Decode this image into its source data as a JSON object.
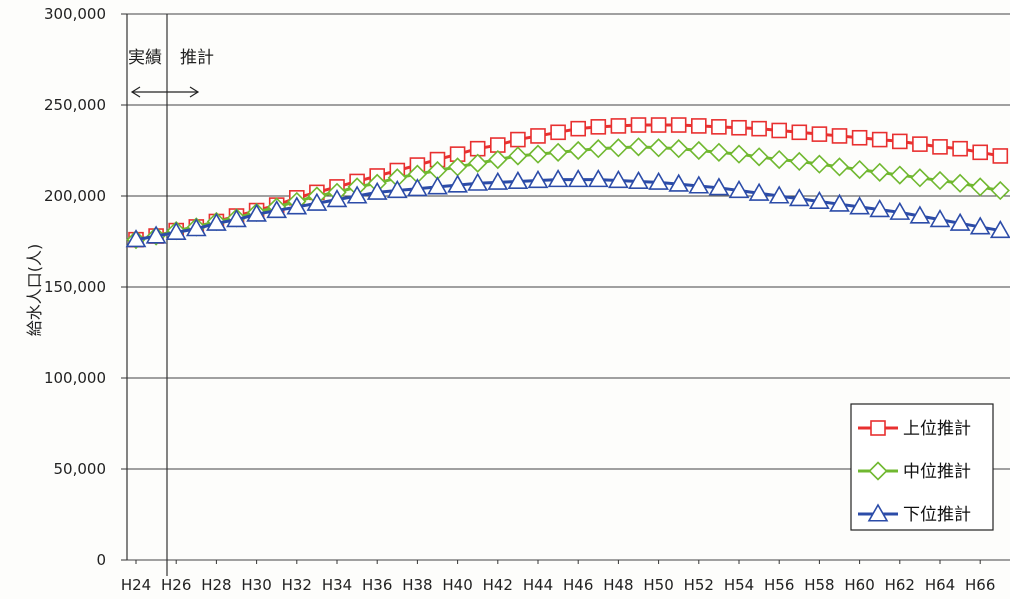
{
  "chart_data": {
    "type": "line",
    "title": "",
    "xlabel": "",
    "ylabel": "給水人口(人)",
    "ylim": [
      0,
      300000
    ],
    "yticks": [
      0,
      50000,
      100000,
      150000,
      200000,
      250000,
      300000
    ],
    "ytick_labels": [
      "0",
      "50,000",
      "100,000",
      "150,000",
      "200,000",
      "250,000",
      "300,000"
    ],
    "xtick_labels": [
      "H24",
      "H26",
      "H28",
      "H30",
      "H32",
      "H34",
      "H36",
      "H38",
      "H40",
      "H42",
      "H44",
      "H46",
      "H48",
      "H50",
      "H52",
      "H54",
      "H56",
      "H58",
      "H60",
      "H62",
      "H64",
      "H66"
    ],
    "x": [
      "H24",
      "H25",
      "H26",
      "H27",
      "H28",
      "H29",
      "H30",
      "H31",
      "H32",
      "H33",
      "H34",
      "H35",
      "H36",
      "H37",
      "H38",
      "H39",
      "H40",
      "H41",
      "H42",
      "H43",
      "H44",
      "H45",
      "H46",
      "H47",
      "H48",
      "H49",
      "H50",
      "H51",
      "H52",
      "H53",
      "H54",
      "H55",
      "H56",
      "H57",
      "H58",
      "H59",
      "H60",
      "H61",
      "H62",
      "H63",
      "H64",
      "H65",
      "H66",
      "H67"
    ],
    "grid": true,
    "legend_position": "bottom-right",
    "annotations": [
      {
        "text": "実績",
        "at": "H24-H25"
      },
      {
        "text": "推計",
        "at": "H26"
      }
    ],
    "series": [
      {
        "name": "上位推計",
        "color": "#e83030",
        "marker": "square",
        "values": [
          176000,
          178000,
          181000,
          183000,
          186000,
          189000,
          192000,
          195000,
          199000,
          202000,
          205000,
          208000,
          211000,
          214000,
          217000,
          220000,
          223000,
          226000,
          228000,
          231000,
          233000,
          235000,
          237000,
          238000,
          238500,
          239000,
          239000,
          239000,
          238500,
          238000,
          237500,
          237000,
          236000,
          235000,
          234000,
          233000,
          232000,
          231000,
          230000,
          228500,
          227000,
          226000,
          224000,
          222000
        ]
      },
      {
        "name": "中位推計",
        "color": "#70b830",
        "marker": "diamond",
        "values": [
          176000,
          178000,
          181000,
          183000,
          186000,
          188000,
          191000,
          194000,
          197000,
          200000,
          202000,
          205000,
          207000,
          210000,
          212000,
          214000,
          216000,
          218000,
          220000,
          222000,
          223000,
          224000,
          225000,
          226000,
          226500,
          227000,
          226500,
          226000,
          225000,
          224000,
          223000,
          221500,
          220000,
          219000,
          217500,
          216000,
          214500,
          213000,
          211500,
          210000,
          208500,
          207000,
          205000,
          203000
        ]
      },
      {
        "name": "下位推計",
        "color": "#2c4ca8",
        "marker": "triangle",
        "values": [
          176000,
          178000,
          180000,
          182000,
          185000,
          187000,
          190000,
          192000,
          194000,
          196000,
          198000,
          200000,
          202000,
          203000,
          204000,
          205000,
          206000,
          207000,
          207500,
          208000,
          208500,
          209000,
          209000,
          209000,
          208500,
          208000,
          207500,
          206500,
          205500,
          204500,
          203000,
          201500,
          200000,
          198500,
          197000,
          195500,
          194000,
          192500,
          191000,
          189000,
          187000,
          185000,
          183000,
          181000
        ]
      }
    ]
  }
}
